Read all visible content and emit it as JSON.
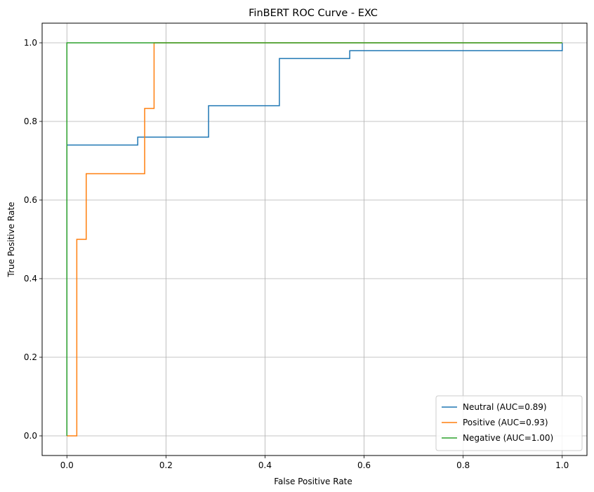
{
  "chart_data": {
    "type": "line",
    "title": "FinBERT ROC Curve - EXC",
    "xlabel": "False Positive Rate",
    "ylabel": "True Positive Rate",
    "xlim": [
      -0.05,
      1.05
    ],
    "ylim": [
      -0.05,
      1.05
    ],
    "xticks": [
      0.0,
      0.2,
      0.4,
      0.6,
      0.8,
      1.0
    ],
    "yticks": [
      0.0,
      0.2,
      0.4,
      0.6,
      0.8,
      1.0
    ],
    "xtick_labels": [
      "0.0",
      "0.2",
      "0.4",
      "0.6",
      "0.8",
      "1.0"
    ],
    "ytick_labels": [
      "0.0",
      "0.2",
      "0.4",
      "0.6",
      "0.8",
      "1.0"
    ],
    "grid": true,
    "legend_position": "lower-right",
    "series": [
      {
        "name": "Neutral (AUC=0.89)",
        "color": "#1f77b4",
        "x": [
          0,
          0,
          0.143,
          0.143,
          0.286,
          0.286,
          0.429,
          0.429,
          0.571,
          0.571,
          1.0,
          1.0
        ],
        "y": [
          0,
          0.74,
          0.74,
          0.76,
          0.76,
          0.84,
          0.84,
          0.96,
          0.96,
          0.98,
          0.98,
          1.0
        ]
      },
      {
        "name": "Positive (AUC=0.93)",
        "color": "#ff7f0e",
        "x": [
          0,
          0.02,
          0.02,
          0.039,
          0.039,
          0.157,
          0.157,
          0.176,
          0.176,
          1.0
        ],
        "y": [
          0,
          0,
          0.5,
          0.5,
          0.667,
          0.667,
          0.833,
          0.833,
          1.0,
          1.0
        ]
      },
      {
        "name": "Negative (AUC=1.00)",
        "color": "#2ca02c",
        "x": [
          0,
          0,
          1.0
        ],
        "y": [
          0,
          1.0,
          1.0
        ]
      }
    ]
  }
}
